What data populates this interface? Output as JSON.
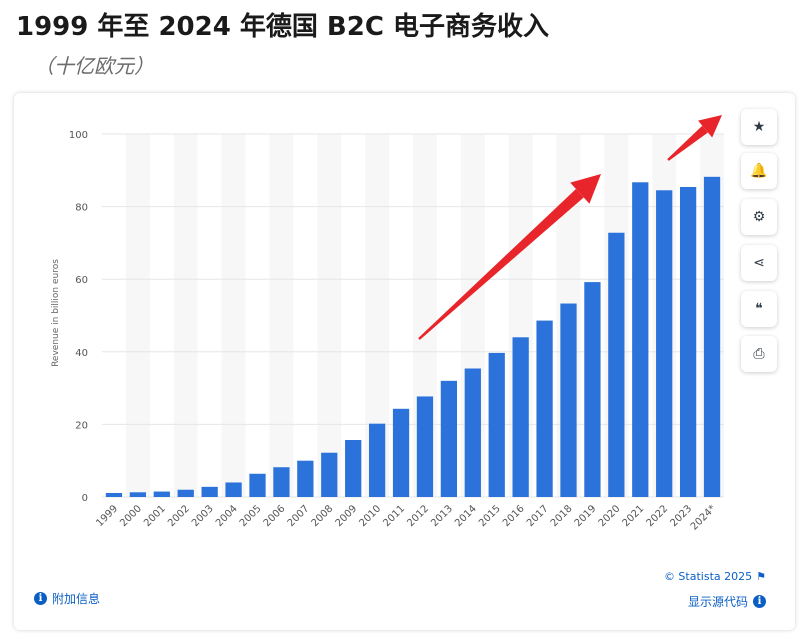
{
  "header": {
    "title": "1999 年至 2024 年德国 B2C 电子商务收入",
    "subtitle": "（十亿欧元）"
  },
  "toolbar": {
    "buttons": [
      {
        "name": "favorite-button",
        "icon": "star-icon",
        "glyph": "★"
      },
      {
        "name": "notification-button",
        "icon": "bell-icon",
        "glyph": "🔔"
      },
      {
        "name": "settings-button",
        "icon": "gear-icon",
        "glyph": "⚙"
      },
      {
        "name": "share-button",
        "icon": "share-icon",
        "glyph": "⋖"
      },
      {
        "name": "cite-button",
        "icon": "quote-icon",
        "glyph": "❝"
      },
      {
        "name": "print-button",
        "icon": "printer-icon",
        "glyph": "⎙"
      }
    ]
  },
  "footer": {
    "info_label": "附加信息",
    "copyright": "© Statista 2025",
    "source_label": "显示源代码",
    "info_glyph": "i",
    "flag_glyph": "⚑"
  },
  "colors": {
    "bar": "#2b73db",
    "arrow": "#e8252a",
    "grid": "#e6e6e6",
    "band": "#f7f7f7"
  },
  "chart_data": {
    "type": "bar",
    "categories": [
      "1999",
      "2000",
      "2001",
      "2002",
      "2003",
      "2004",
      "2005",
      "2006",
      "2007",
      "2008",
      "2009",
      "2010",
      "2011",
      "2012",
      "2013",
      "2014",
      "2015",
      "2016",
      "2017",
      "2018",
      "2019",
      "2020",
      "2021",
      "2022",
      "2023",
      "2024*"
    ],
    "values": [
      1.1,
      1.3,
      1.5,
      2.0,
      2.8,
      4.0,
      6.4,
      8.2,
      10.0,
      12.2,
      15.7,
      20.2,
      24.3,
      27.7,
      32.0,
      35.4,
      39.7,
      44.0,
      48.6,
      53.3,
      59.2,
      72.8,
      86.7,
      84.5,
      85.4,
      88.2
    ],
    "ylabel": "Revenue in billion euros",
    "ylim": [
      0,
      100
    ],
    "yticks": [
      0,
      20,
      40,
      60,
      80,
      100
    ],
    "grid": true,
    "legend": "none",
    "annotations": [
      "red-arrow",
      "red-arrow"
    ]
  }
}
